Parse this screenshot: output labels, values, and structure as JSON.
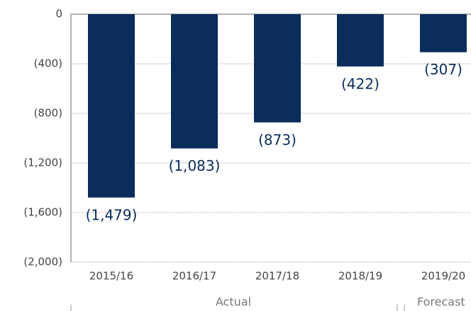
{
  "chart_data": {
    "type": "bar",
    "categories": [
      "2015/16",
      "2016/17",
      "2017/18",
      "2018/19",
      "2019/20"
    ],
    "values": [
      -1479,
      -1083,
      -873,
      -422,
      -307
    ],
    "value_labels": [
      "(1,479)",
      "(1,083)",
      "(873)",
      "(422)",
      "(307)"
    ],
    "color": "#0b2d5b",
    "ylim": [
      -2000,
      0
    ],
    "yticks": [
      0,
      {
        "value": -400,
        "label": "(400)"
      },
      {
        "value": -800,
        "label": "(800)"
      },
      {
        "value": -1200,
        "label": "(1,200)"
      },
      {
        "value": -1600,
        "label": "(1,600)"
      },
      {
        "value": -2000,
        "label": "(2,000)"
      }
    ],
    "grid": true,
    "group_labels": [
      "Actual",
      "Forecast"
    ]
  }
}
